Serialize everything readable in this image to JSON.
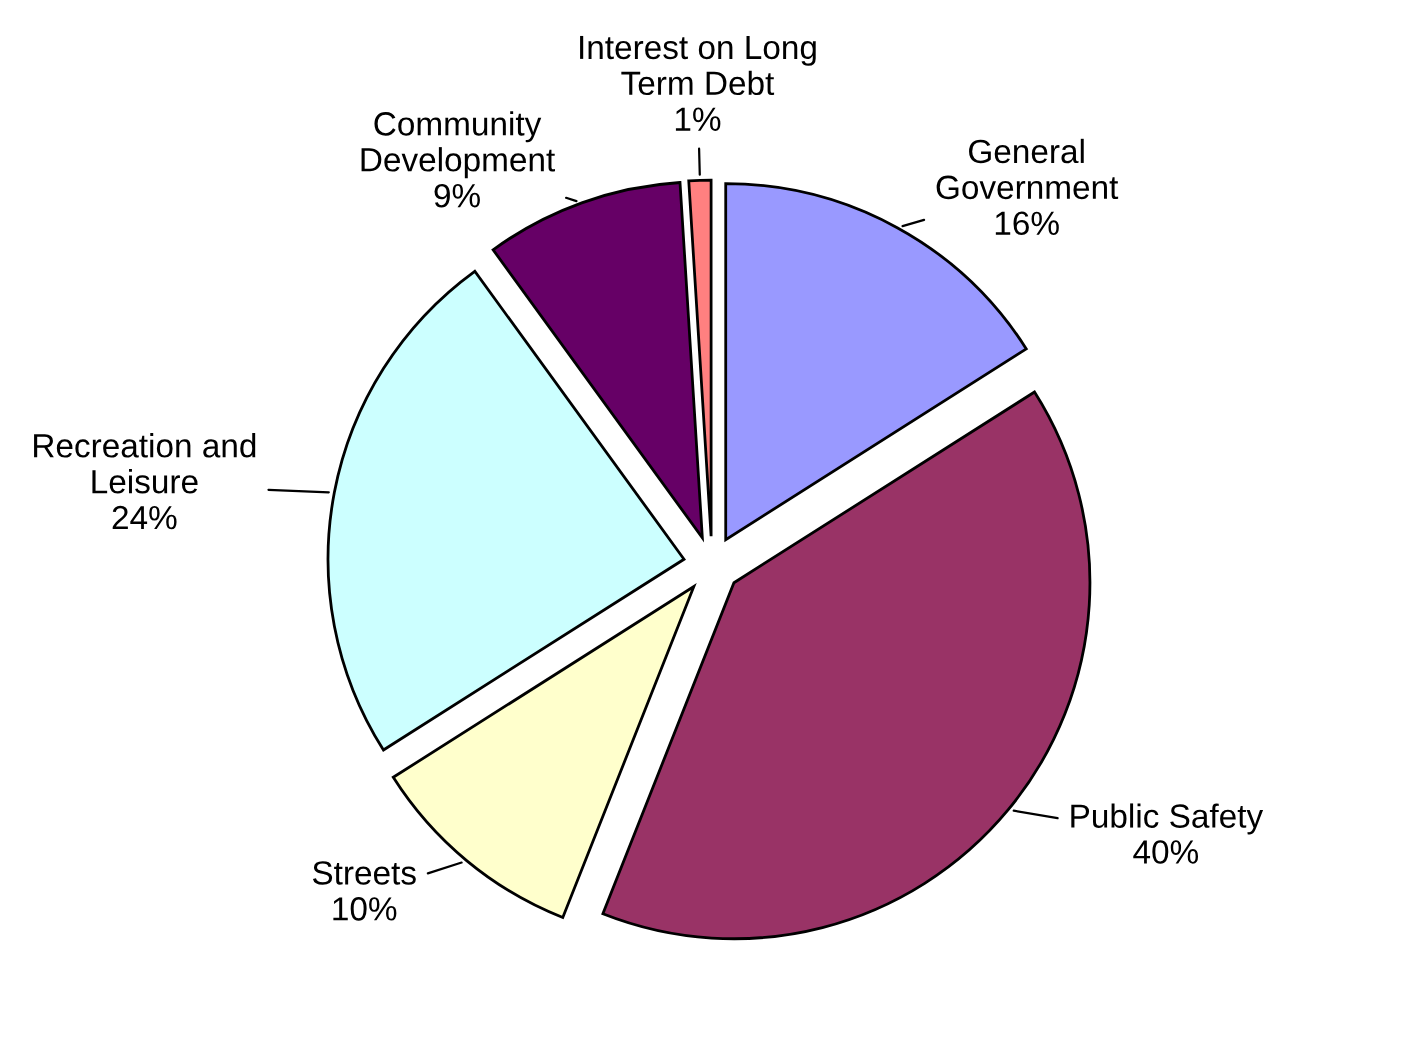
{
  "chart_data": {
    "type": "pie",
    "categories": [
      "General\nGovernment",
      "Public Safety",
      "Streets",
      "Recreation and\nLeisure",
      "Community\nDevelopment",
      "Interest on Long\nTerm Debt"
    ],
    "values": [
      16,
      40,
      10,
      24,
      9,
      1
    ],
    "value_labels": [
      "16%",
      "40%",
      "10%",
      "24%",
      "9%",
      "1%"
    ],
    "colors": [
      "#9999ff",
      "#993366",
      "#ffffcc",
      "#ccffff",
      "#660066",
      "#ff8080"
    ],
    "legend": false
  }
}
